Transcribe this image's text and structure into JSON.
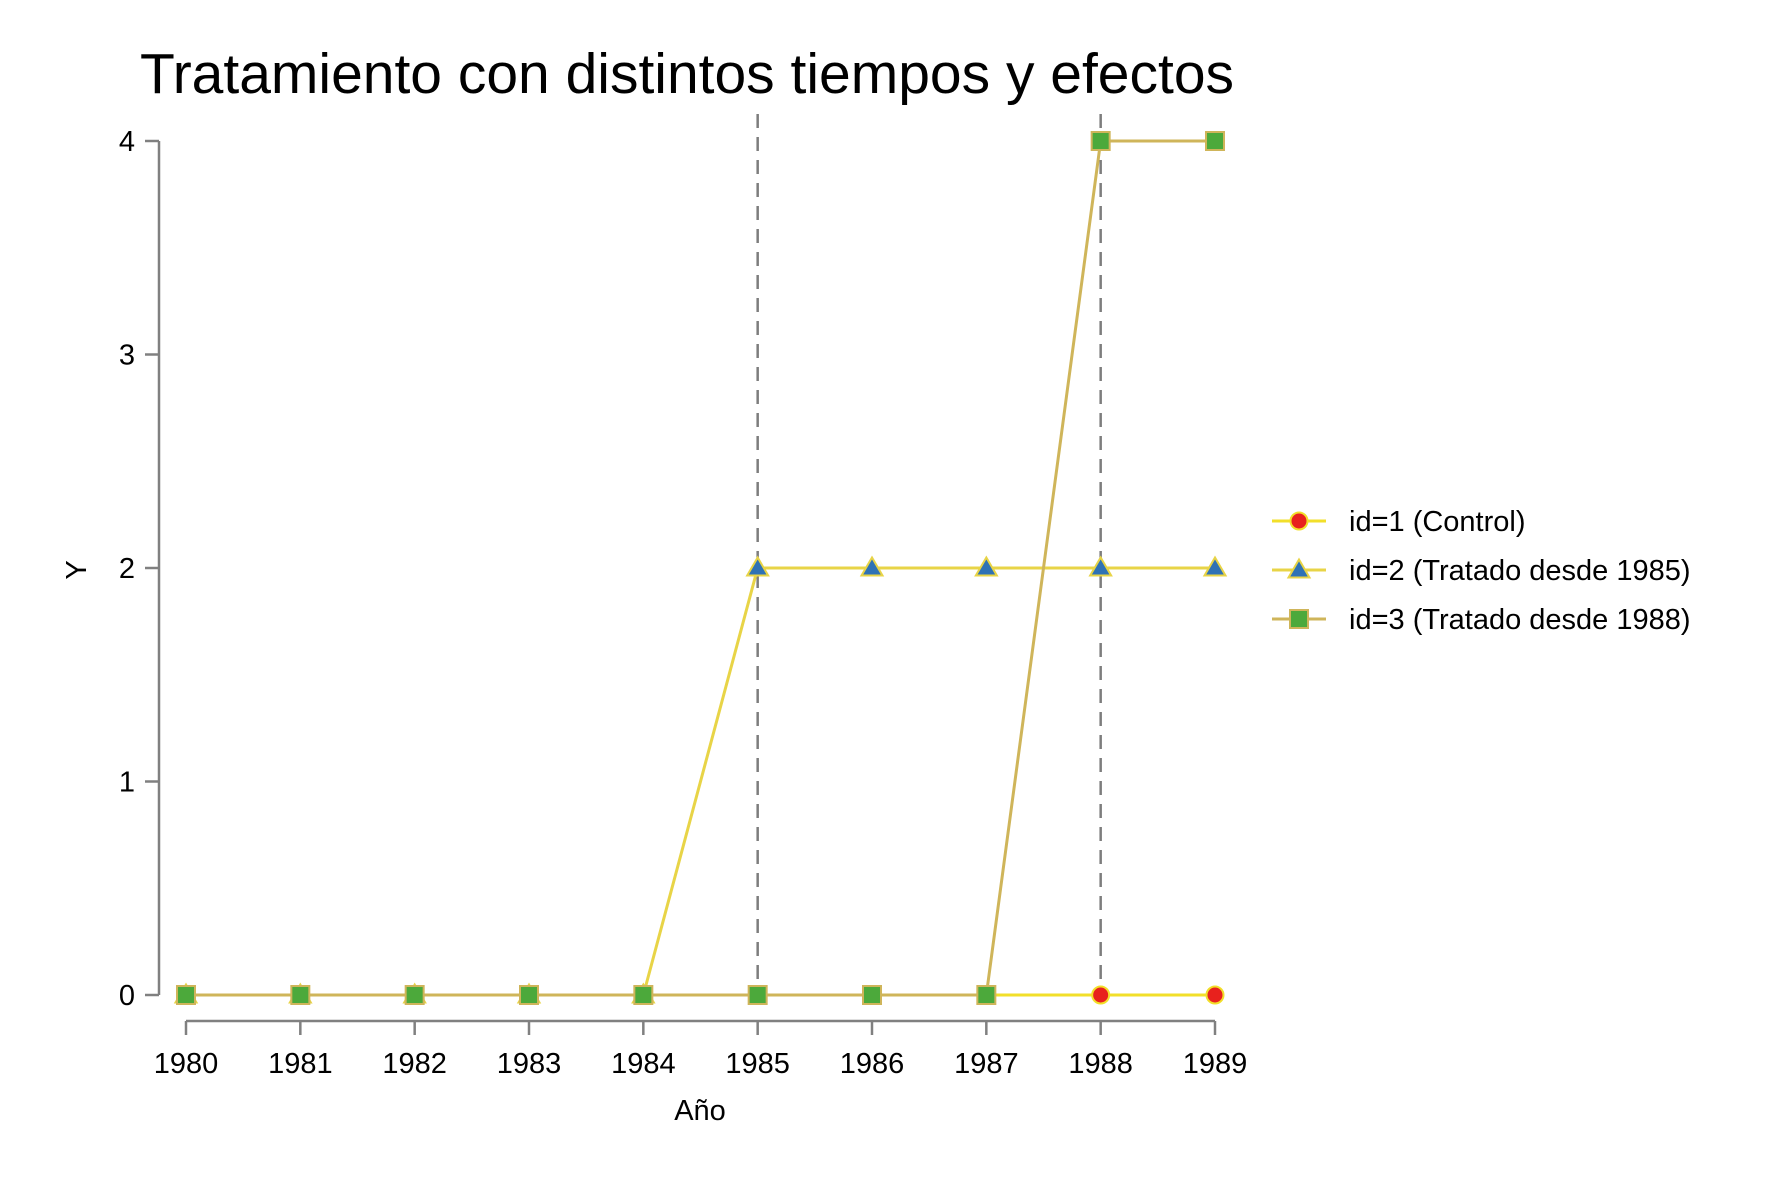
{
  "chart_data": {
    "type": "line",
    "title": "Tratamiento con distintos tiempos y efectos",
    "xlabel": "Año",
    "ylabel": "Y",
    "x": [
      1980,
      1981,
      1982,
      1983,
      1984,
      1985,
      1986,
      1987,
      1988,
      1989
    ],
    "x_ticks": [
      "1980",
      "1981",
      "1982",
      "1983",
      "1984",
      "1985",
      "1986",
      "1987",
      "1988",
      "1989"
    ],
    "y_ticks": [
      "0",
      "1",
      "2",
      "3",
      "4"
    ],
    "xlim": [
      1980,
      1989
    ],
    "ylim": [
      0,
      4
    ],
    "grid": false,
    "legend_position": "right",
    "reference_lines_x": [
      1985,
      1988
    ],
    "series": [
      {
        "name": "id=1 (Control)",
        "values": [
          0,
          0,
          0,
          0,
          0,
          0,
          0,
          0,
          0,
          0
        ],
        "line_color": "#f2df2a",
        "marker": "circle",
        "marker_color": "#e8211d"
      },
      {
        "name": "id=2 (Tratado desde 1985)",
        "values": [
          0,
          0,
          0,
          0,
          0,
          2,
          2,
          2,
          2,
          2
        ],
        "line_color": "#e8d447",
        "marker": "triangle",
        "marker_color": "#2f72b5"
      },
      {
        "name": "id=3 (Tratado desde 1988)",
        "values": [
          0,
          0,
          0,
          0,
          0,
          0,
          0,
          0,
          4,
          4
        ],
        "line_color": "#cfb55a",
        "marker": "square",
        "marker_color": "#4ca93b"
      }
    ]
  }
}
